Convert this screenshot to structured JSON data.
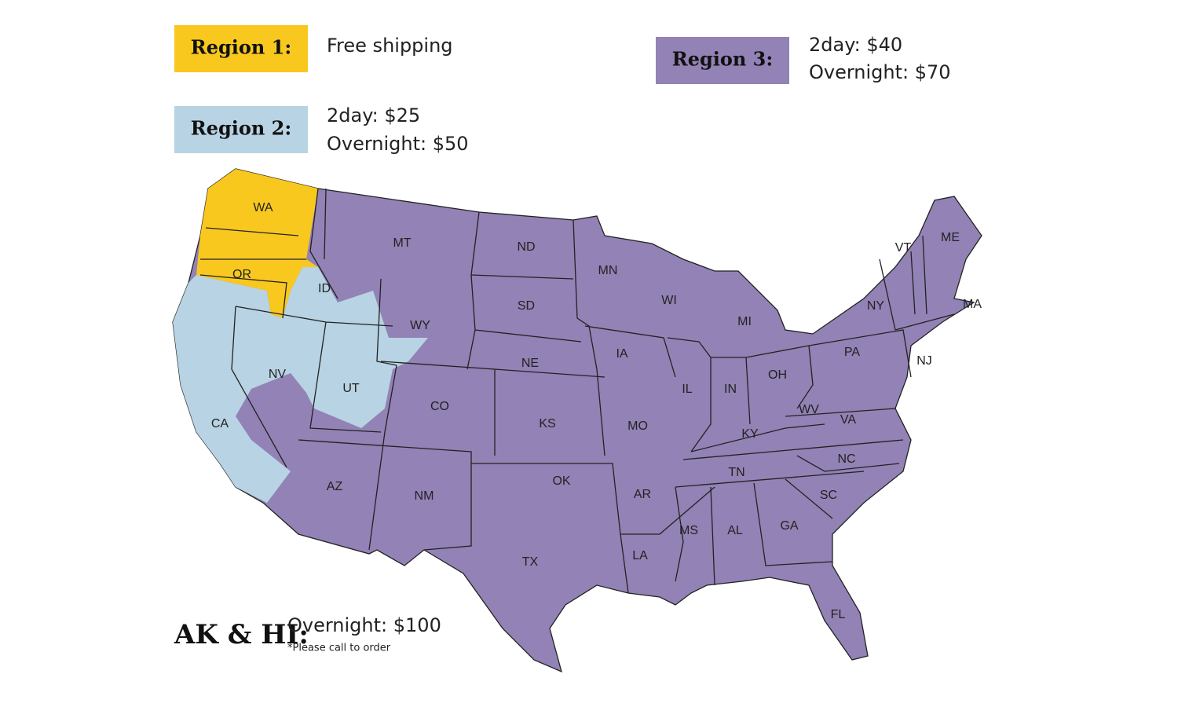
{
  "legend": [
    {
      "label": "Region 1:",
      "lines": [
        "Free shipping"
      ]
    },
    {
      "label": "Region 2:",
      "lines": [
        "2day: $25",
        "Overnight: $50"
      ]
    },
    {
      "label": "Region 3:",
      "lines": [
        "2day: $40",
        "Overnight: $70"
      ]
    }
  ],
  "note": {
    "label": "AK & HI:",
    "lines": [
      "Overnight: $100"
    ],
    "footnote": "*Please call to order"
  },
  "states": [
    "WA",
    "OR",
    "ID",
    "MT",
    "ND",
    "MN",
    "WI",
    "MI",
    "VT",
    "ME",
    "NY",
    "MA",
    "PA",
    "NJ",
    "OH",
    "WY",
    "SD",
    "NE",
    "IA",
    "IL",
    "IN",
    "NV",
    "UT",
    "CO",
    "KS",
    "MO",
    "KY",
    "WV",
    "VA",
    "CA",
    "AZ",
    "NM",
    "OK",
    "AR",
    "TN",
    "NC",
    "SC",
    "MS",
    "AL",
    "GA",
    "LA",
    "TX",
    "FL"
  ]
}
